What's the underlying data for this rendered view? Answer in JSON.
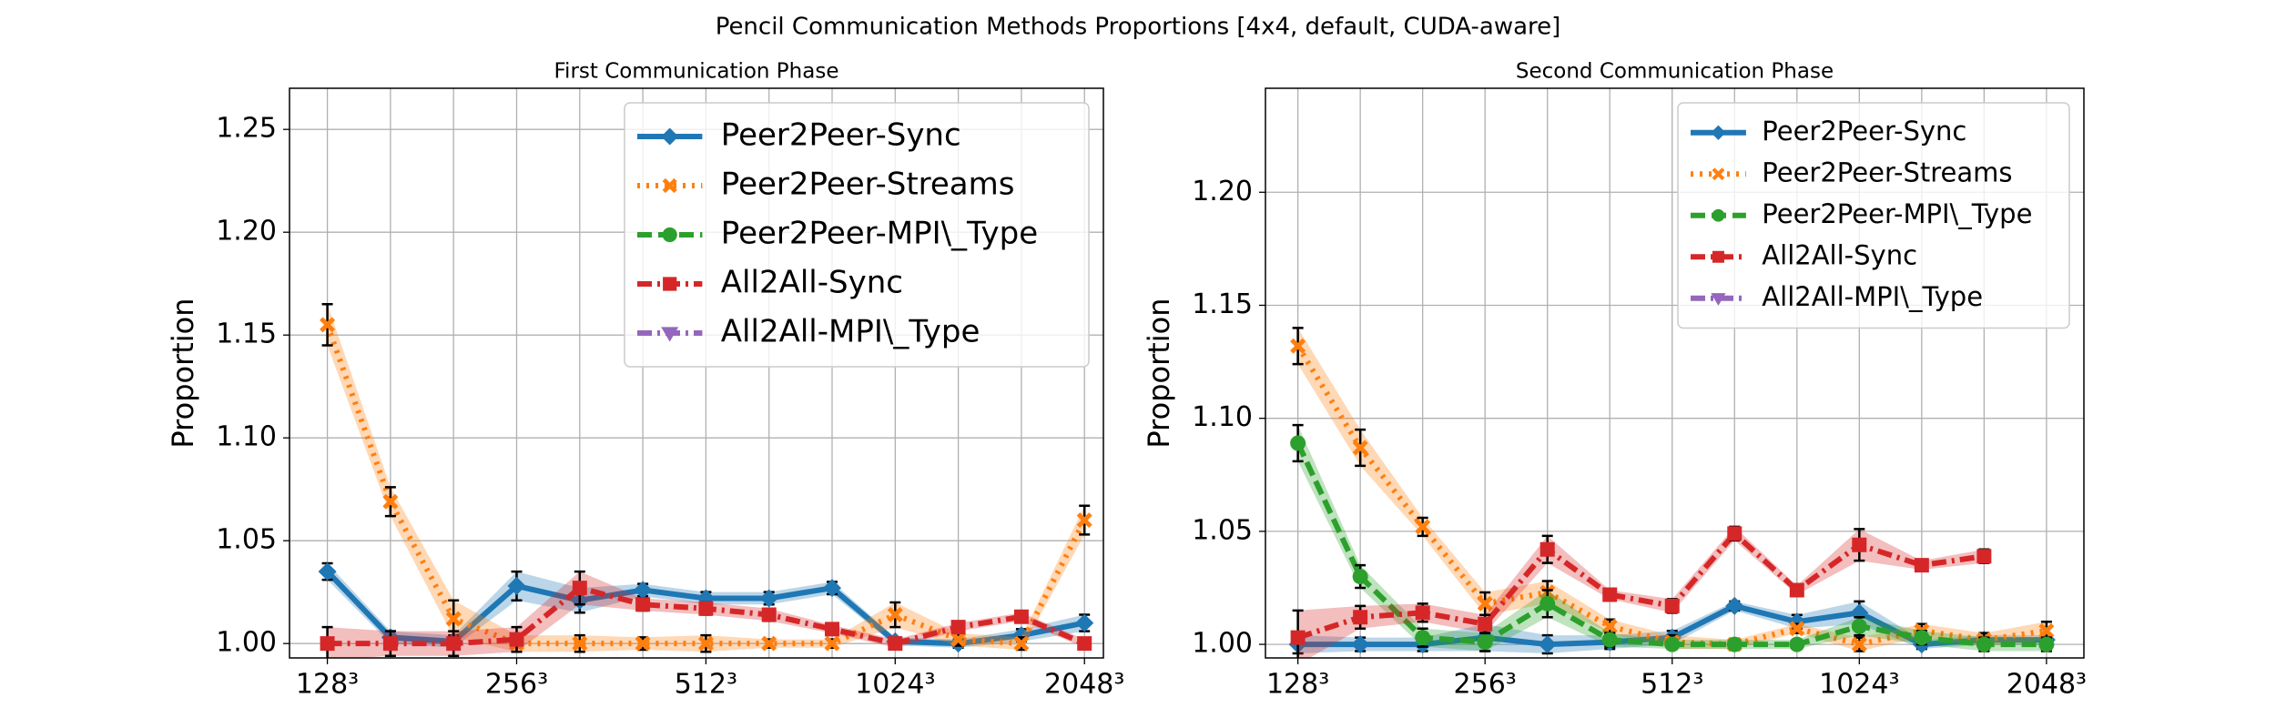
{
  "title": "Pencil Communication Methods Proportions [4x4, default, CUDA-aware]",
  "chart_data": [
    {
      "type": "line",
      "title": "First Communication Phase",
      "y_label": "Proportion",
      "x": [
        0,
        1,
        2,
        3,
        4,
        5,
        6,
        7,
        8,
        9,
        10,
        11,
        12
      ],
      "xlim": [
        -0.6,
        12.3
      ],
      "ylim": [
        0.993,
        1.27
      ],
      "xticks": [
        {
          "value": 0,
          "label": "128³"
        },
        {
          "value": 3,
          "label": "256³"
        },
        {
          "value": 6,
          "label": "512³"
        },
        {
          "value": 9,
          "label": "1024³"
        },
        {
          "value": 12,
          "label": "2048³"
        }
      ],
      "yticks": [
        {
          "value": 1,
          "label": "1.00"
        },
        {
          "value": 1.05,
          "label": "1.05"
        },
        {
          "value": 1.1,
          "label": "1.10"
        },
        {
          "value": 1.15,
          "label": "1.15"
        },
        {
          "value": 1.2,
          "label": "1.20"
        },
        {
          "value": 1.25,
          "label": "1.25"
        }
      ],
      "grid": true,
      "legend": "upper right",
      "series": [
        {
          "name": "Peer2Peer-Sync",
          "color": "#1f77b4",
          "style": "solid",
          "marker": "diamond",
          "values": [
            1.035,
            1.003,
            1.001,
            1.028,
            1.021,
            1.026,
            1.022,
            1.022,
            1.027,
            1.001,
            1.0,
            1.004,
            1.01
          ],
          "errors": [
            0.004,
            0.003,
            0.003,
            0.007,
            0.006,
            0.003,
            0.003,
            0.003,
            0.003,
            0.002,
            0.002,
            0.003,
            0.004
          ]
        },
        {
          "name": "Peer2Peer-Streams",
          "color": "#ff7f0e",
          "style": "dotted",
          "marker": "x",
          "values": [
            1.155,
            1.069,
            1.012,
            1.0,
            1.0,
            1.0,
            1.0,
            1.0,
            1.0,
            1.014,
            1.002,
            1.0,
            1.06
          ],
          "errors": [
            0.01,
            0.007,
            0.009,
            0.004,
            0.004,
            0.003,
            0.004,
            0.002,
            0.002,
            0.006,
            0.003,
            0.003,
            0.007
          ]
        },
        {
          "name": "Peer2Peer-MPI\\_Type",
          "color": "#2ca02c",
          "style": "dashed",
          "marker": "circle",
          "values": [
            null,
            null,
            null,
            null,
            null,
            null,
            null,
            null,
            null,
            null,
            null,
            null,
            null
          ],
          "errors": [
            null,
            null,
            null,
            null,
            null,
            null,
            null,
            null,
            null,
            null,
            null,
            null,
            null
          ]
        },
        {
          "name": "All2All-Sync",
          "color": "#d62728",
          "style": "dashdot",
          "marker": "square",
          "values": [
            1.0,
            1.0,
            1.0,
            1.002,
            1.027,
            1.019,
            1.017,
            1.014,
            1.007,
            1.0,
            1.008,
            1.013,
            1.0
          ],
          "errors": [
            0.008,
            0.006,
            0.006,
            0.006,
            0.008,
            0.003,
            0.003,
            0.003,
            0.002,
            0.002,
            0.002,
            0.002,
            0.002
          ]
        },
        {
          "name": "All2All-MPI\\_Type",
          "color": "#9467bd",
          "style": "dashdot",
          "marker": "triangle",
          "values": [
            null,
            null,
            null,
            null,
            null,
            null,
            null,
            null,
            null,
            null,
            null,
            null,
            null
          ],
          "errors": [
            null,
            null,
            null,
            null,
            null,
            null,
            null,
            null,
            null,
            null,
            null,
            null,
            null
          ]
        }
      ]
    },
    {
      "type": "line",
      "title": "Second Communication Phase",
      "y_label": "Proportion",
      "x": [
        0,
        1,
        2,
        3,
        4,
        5,
        6,
        7,
        8,
        9,
        10,
        11,
        12
      ],
      "xlim": [
        -0.52,
        12.6
      ],
      "ylim": [
        0.994,
        1.246
      ],
      "xticks": [
        {
          "value": 0,
          "label": "128³"
        },
        {
          "value": 3,
          "label": "256³"
        },
        {
          "value": 6,
          "label": "512³"
        },
        {
          "value": 9,
          "label": "1024³"
        },
        {
          "value": 12,
          "label": "2048³"
        }
      ],
      "yticks": [
        {
          "value": 1,
          "label": "1.00"
        },
        {
          "value": 1.05,
          "label": "1.05"
        },
        {
          "value": 1.1,
          "label": "1.10"
        },
        {
          "value": 1.15,
          "label": "1.15"
        },
        {
          "value": 1.2,
          "label": "1.20"
        }
      ],
      "grid": true,
      "legend": "upper right",
      "series": [
        {
          "name": "Peer2Peer-Sync",
          "color": "#1f77b4",
          "style": "solid",
          "marker": "diamond",
          "values": [
            1.0,
            1.0,
            1.0,
            1.003,
            1.0,
            1.001,
            1.003,
            1.017,
            1.01,
            1.014,
            1.0,
            1.002,
            1.002
          ],
          "errors": [
            0.004,
            0.003,
            0.003,
            0.006,
            0.004,
            0.003,
            0.003,
            0.002,
            0.003,
            0.005,
            0.002,
            0.002,
            0.002
          ]
        },
        {
          "name": "Peer2Peer-Streams",
          "color": "#ff7f0e",
          "style": "dotted",
          "marker": "x",
          "values": [
            1.132,
            1.087,
            1.052,
            1.018,
            1.023,
            1.008,
            1.001,
            1.0,
            1.007,
            1.0,
            1.006,
            1.002,
            1.006
          ],
          "errors": [
            0.008,
            0.008,
            0.004,
            0.005,
            0.005,
            0.003,
            0.003,
            0.002,
            0.002,
            0.003,
            0.003,
            0.003,
            0.004
          ]
        },
        {
          "name": "Peer2Peer-MPI\\_Type",
          "color": "#2ca02c",
          "style": "dashed",
          "marker": "circle",
          "values": [
            1.089,
            1.03,
            1.003,
            1.001,
            1.018,
            1.002,
            1.0,
            1.0,
            1.0,
            1.008,
            1.003,
            1.0,
            1.0
          ],
          "errors": [
            0.008,
            0.005,
            0.004,
            0.004,
            0.006,
            0.003,
            0.002,
            0.002,
            0.002,
            0.004,
            0.003,
            0.003,
            0.003
          ]
        },
        {
          "name": "All2All-Sync",
          "color": "#d62728",
          "style": "dashdot",
          "marker": "square",
          "values": [
            1.003,
            1.012,
            1.014,
            1.009,
            1.042,
            1.022,
            1.017,
            1.049,
            1.024,
            1.044,
            1.035,
            1.039,
            null
          ],
          "errors": [
            0.012,
            0.005,
            0.004,
            0.004,
            0.006,
            0.002,
            0.003,
            0.003,
            0.002,
            0.007,
            0.002,
            0.003,
            null
          ]
        },
        {
          "name": "All2All-MPI\\_Type",
          "color": "#9467bd",
          "style": "dashdot",
          "marker": "triangle",
          "values": [
            null,
            null,
            null,
            null,
            null,
            null,
            null,
            null,
            null,
            null,
            null,
            null,
            null
          ],
          "errors": [
            null,
            null,
            null,
            null,
            null,
            null,
            null,
            null,
            null,
            null,
            null,
            null,
            null
          ]
        }
      ]
    }
  ]
}
